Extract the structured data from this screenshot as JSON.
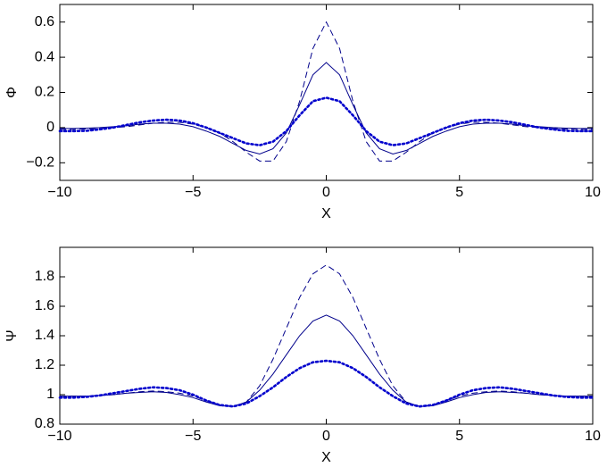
{
  "chart_data": [
    {
      "type": "line",
      "xlabel": "X",
      "ylabel": "Φ",
      "x": [
        -10,
        -9.5,
        -9,
        -8.5,
        -8,
        -7.5,
        -7,
        -6.5,
        -6,
        -5.5,
        -5,
        -4.5,
        -4,
        -3.5,
        -3,
        -2.5,
        -2,
        -1.5,
        -1,
        -0.5,
        0,
        0.5,
        1,
        1.5,
        2,
        2.5,
        3,
        3.5,
        4,
        4.5,
        5,
        5.5,
        6,
        6.5,
        7,
        7.5,
        8,
        8.5,
        9,
        9.5,
        10
      ],
      "series": [
        {
          "color": "#00008b",
          "style": "solid",
          "values": [
            -0.005,
            -0.005,
            -0.003,
            0,
            0.005,
            0.01,
            0.02,
            0.025,
            0.025,
            0.02,
            0.005,
            -0.02,
            -0.05,
            -0.09,
            -0.13,
            -0.15,
            -0.12,
            -0.03,
            0.13,
            0.3,
            0.37,
            0.3,
            0.13,
            -0.03,
            -0.12,
            -0.15,
            -0.13,
            -0.09,
            -0.05,
            -0.02,
            0.005,
            0.02,
            0.025,
            0.025,
            0.02,
            0.01,
            0.005,
            0,
            -0.003,
            -0.005,
            -0.005
          ]
        },
        {
          "color": "#00008b",
          "style": "dashed",
          "values": [
            -0.01,
            -0.01,
            -0.008,
            -0.005,
            0,
            0.005,
            0.015,
            0.025,
            0.03,
            0.03,
            0.02,
            0,
            -0.03,
            -0.08,
            -0.14,
            -0.19,
            -0.19,
            -0.08,
            0.15,
            0.45,
            0.6,
            0.45,
            0.15,
            -0.08,
            -0.19,
            -0.19,
            -0.14,
            -0.08,
            -0.03,
            0,
            0.02,
            0.03,
            0.03,
            0.025,
            0.015,
            0.005,
            0,
            -0.005,
            -0.008,
            -0.01,
            -0.01
          ]
        },
        {
          "color": "#0000cd",
          "style": "dotted",
          "values": [
            -0.02,
            -0.02,
            -0.018,
            -0.01,
            0,
            0.015,
            0.03,
            0.04,
            0.045,
            0.04,
            0.025,
            0,
            -0.03,
            -0.06,
            -0.09,
            -0.1,
            -0.08,
            -0.02,
            0.07,
            0.15,
            0.17,
            0.15,
            0.07,
            -0.02,
            -0.08,
            -0.1,
            -0.09,
            -0.06,
            -0.03,
            0,
            0.025,
            0.04,
            0.045,
            0.04,
            0.03,
            0.015,
            0,
            -0.01,
            -0.018,
            -0.02,
            -0.02
          ]
        }
      ],
      "xlim": [
        -10,
        10
      ],
      "xticks": [
        {
          "value": -10,
          "label": "−10"
        },
        {
          "value": -5,
          "label": "−5"
        },
        0,
        5,
        10
      ],
      "ylim": [
        -0.3,
        0.7
      ],
      "yticks": [
        {
          "value": -0.2,
          "label": "−0.2"
        },
        0,
        0.2,
        0.4,
        0.6
      ]
    },
    {
      "type": "line",
      "xlabel": "X",
      "ylabel": "Ψ",
      "x": [
        -10,
        -9.5,
        -9,
        -8.5,
        -8,
        -7.5,
        -7,
        -6.5,
        -6,
        -5.5,
        -5,
        -4.5,
        -4,
        -3.5,
        -3,
        -2.5,
        -2,
        -1.5,
        -1,
        -0.5,
        0,
        0.5,
        1,
        1.5,
        2,
        2.5,
        3,
        3.5,
        4,
        4.5,
        5,
        5.5,
        6,
        6.5,
        7,
        7.5,
        8,
        8.5,
        9,
        9.5,
        10
      ],
      "series": [
        {
          "color": "#00008b",
          "style": "solid",
          "values": [
            0.99,
            0.99,
            0.99,
            0.995,
            1.0,
            1.01,
            1.015,
            1.02,
            1.015,
            1.0,
            0.98,
            0.95,
            0.925,
            0.92,
            0.95,
            1.03,
            1.14,
            1.27,
            1.4,
            1.5,
            1.54,
            1.5,
            1.4,
            1.27,
            1.14,
            1.03,
            0.95,
            0.92,
            0.925,
            0.95,
            0.98,
            1.0,
            1.015,
            1.02,
            1.015,
            1.01,
            1.0,
            0.995,
            0.99,
            0.99,
            0.99
          ]
        },
        {
          "color": "#00008b",
          "style": "dashed",
          "values": [
            0.99,
            0.99,
            0.99,
            0.995,
            1.0,
            1.01,
            1.02,
            1.025,
            1.02,
            1.01,
            0.99,
            0.96,
            0.93,
            0.92,
            0.95,
            1.06,
            1.24,
            1.45,
            1.66,
            1.82,
            1.88,
            1.82,
            1.66,
            1.45,
            1.24,
            1.06,
            0.95,
            0.92,
            0.93,
            0.96,
            0.99,
            1.01,
            1.02,
            1.025,
            1.02,
            1.01,
            1.0,
            0.995,
            0.99,
            0.99,
            0.99
          ]
        },
        {
          "color": "#0000cd",
          "style": "dotted",
          "values": [
            0.98,
            0.98,
            0.985,
            0.995,
            1.01,
            1.025,
            1.04,
            1.05,
            1.045,
            1.03,
            1.0,
            0.96,
            0.93,
            0.92,
            0.94,
            0.99,
            1.05,
            1.12,
            1.18,
            1.22,
            1.23,
            1.22,
            1.18,
            1.12,
            1.05,
            0.99,
            0.94,
            0.92,
            0.93,
            0.96,
            1.0,
            1.03,
            1.045,
            1.05,
            1.04,
            1.025,
            1.01,
            0.995,
            0.985,
            0.98,
            0.98
          ]
        }
      ],
      "xlim": [
        -10,
        10
      ],
      "xticks": [
        {
          "value": -10,
          "label": "−10"
        },
        {
          "value": -5,
          "label": "−5"
        },
        0,
        5,
        10
      ],
      "ylim": [
        0.8,
        2
      ],
      "yticks": [
        0.8,
        1,
        1.2,
        1.4,
        1.6,
        1.8
      ]
    }
  ]
}
